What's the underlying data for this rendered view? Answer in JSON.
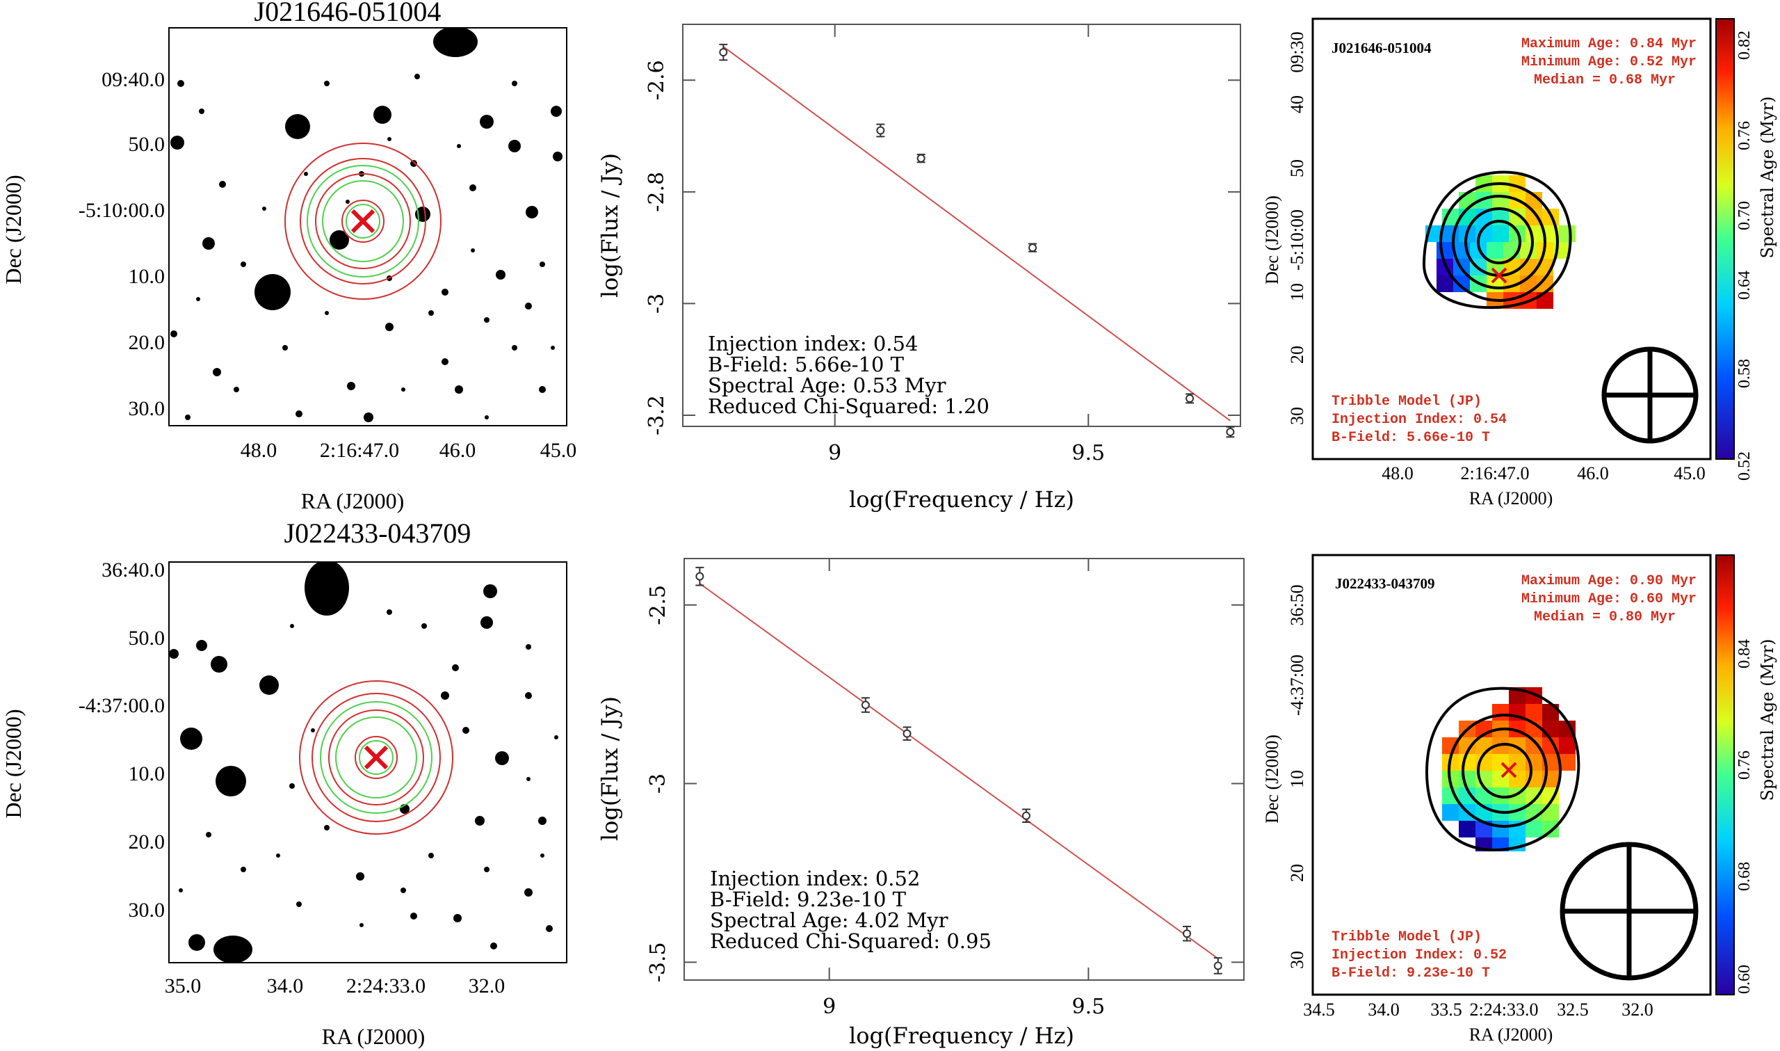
{
  "rows": [
    {
      "source": "J021646-051004",
      "optical": {
        "xlabel": "RA (J2000)",
        "ylabel": "Dec (J2000)",
        "xticks": [
          "48.0",
          "2:16:47.0",
          "46.0",
          "45.0"
        ],
        "yticks": [
          "09:40.0",
          "50.0",
          "-5:10:00.0",
          "10.0",
          "20.0",
          "30.0"
        ]
      },
      "fit": {
        "annotations": [
          "Injection index: 0.54",
          "B-Field: 5.66e-10 T",
          "Spectral Age: 0.53 Myr",
          "Reduced Chi-Squared: 1.20"
        ]
      },
      "map": {
        "source_label": "J021646-051004",
        "age_stats": [
          "Maximum Age: 0.84 Myr",
          "Minimum Age: 0.52 Myr",
          "Median = 0.68 Myr"
        ],
        "model_info": [
          "Tribble Model (JP)",
          "Injection Index: 0.54",
          "B-Field: 5.66e-10 T"
        ],
        "xlabel": "RA (J2000)",
        "ylabel": "Dec (J2000)",
        "xticks": [
          "48.0",
          "2:16:47.0",
          "46.0",
          "45.0"
        ],
        "yticks": [
          "09:30",
          "40",
          "50",
          "-5:10:00",
          "10",
          "20",
          "30"
        ],
        "colorbar_label": "Spectral Age (Myr)",
        "colorbar_ticks": [
          "0.52",
          "0.58",
          "0.64",
          "0.70",
          "0.76",
          "0.82"
        ]
      }
    },
    {
      "source": "J022433-043709",
      "optical": {
        "xlabel": "RA (J2000)",
        "ylabel": "Dec (J2000)",
        "xticks": [
          "35.0",
          "34.0",
          "2:24:33.0",
          "32.0"
        ],
        "yticks": [
          "36:40.0",
          "50.0",
          "-4:37:00.0",
          "10.0",
          "20.0",
          "30.0"
        ]
      },
      "fit": {
        "annotations": [
          "Injection index: 0.52",
          "B-Field: 9.23e-10 T",
          "Spectral Age: 4.02 Myr",
          "Reduced Chi-Squared: 0.95"
        ]
      },
      "map": {
        "source_label": "J022433-043709",
        "age_stats": [
          "Maximum Age: 0.90 Myr",
          "Minimum Age: 0.60 Myr",
          "Median = 0.80 Myr"
        ],
        "model_info": [
          "Tribble Model (JP)",
          "Injection Index: 0.52",
          "B-Field: 9.23e-10 T"
        ],
        "xlabel": "RA (J2000)",
        "ylabel": "Dec (J2000)",
        "xticks": [
          "34.5",
          "34.0",
          "33.5",
          "2:24:33.0",
          "32.5",
          "32.0"
        ],
        "yticks": [
          "36:50",
          "-4:37:00",
          "10",
          "20",
          "30"
        ],
        "colorbar_label": "Spectral Age (Myr)",
        "colorbar_ticks": [
          "0.60",
          "0.68",
          "0.76",
          "0.84"
        ]
      }
    }
  ],
  "chart_data": [
    {
      "type": "scatter",
      "xlabel": "log(Frequency / Hz)",
      "ylabel": "log(Flux / Jy)",
      "xlim": [
        8.7,
        9.8
      ],
      "ylim": [
        -3.22,
        -2.5
      ],
      "xticks": [
        9,
        9.5
      ],
      "yticks": [
        -2.6,
        -2.8,
        -3,
        -3.2
      ],
      "xtick_labels": [
        "9",
        "9.5"
      ],
      "ytick_labels": [
        "-2.6",
        "-2.8",
        "-3",
        "-3.2"
      ],
      "x": [
        8.78,
        9.09,
        9.17,
        9.39,
        9.7,
        9.78
      ],
      "y": [
        -2.55,
        -2.69,
        -2.74,
        -2.9,
        -3.17,
        -3.23
      ],
      "yerr": [
        0.014,
        0.011,
        0.007,
        0.007,
        0.008,
        0.009
      ],
      "fit_line": {
        "x": [
          8.78,
          9.78
        ],
        "y": [
          -2.54,
          -3.21
        ]
      }
    },
    {
      "type": "scatter",
      "xlabel": "log(Frequency / Hz)",
      "ylabel": "log(Flux / Jy)",
      "xlim": [
        8.72,
        9.8
      ],
      "ylim": [
        -3.55,
        -2.37
      ],
      "xticks": [
        9,
        9.5
      ],
      "yticks": [
        -2.5,
        -3,
        -3.5
      ],
      "xtick_labels": [
        "9",
        "9.5"
      ],
      "ytick_labels": [
        "-2.5",
        "-3",
        "-3.5"
      ],
      "x": [
        8.75,
        9.07,
        9.15,
        9.38,
        9.69,
        9.75
      ],
      "y": [
        -2.42,
        -2.78,
        -2.86,
        -3.09,
        -3.42,
        -3.51
      ],
      "yerr": [
        0.025,
        0.02,
        0.018,
        0.018,
        0.02,
        0.022
      ],
      "fit_line": {
        "x": [
          8.75,
          9.75
        ],
        "y": [
          -2.44,
          -3.49
        ]
      }
    }
  ]
}
